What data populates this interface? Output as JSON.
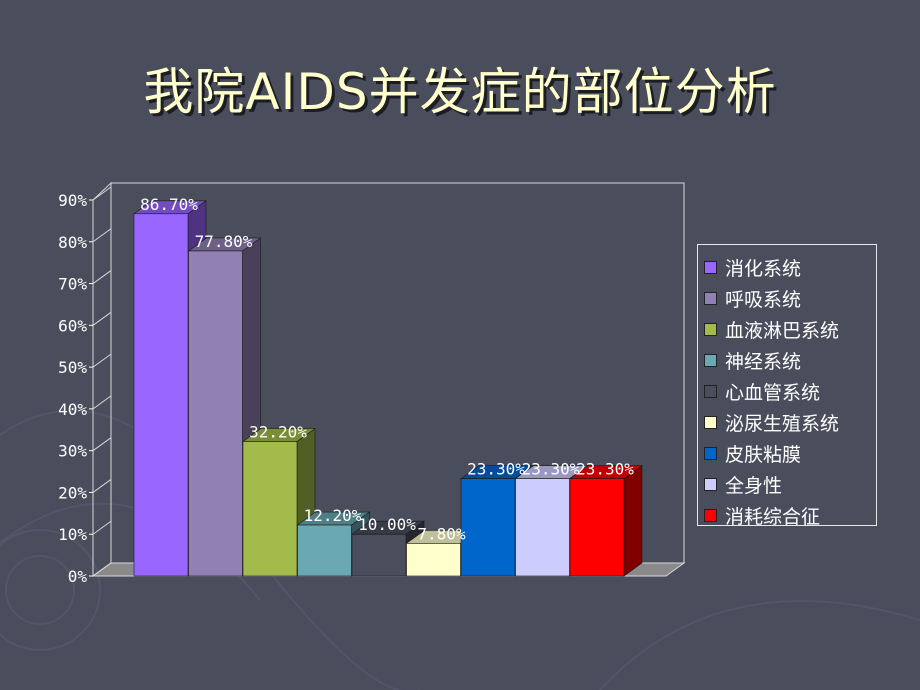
{
  "slide": {
    "title": "我院AIDS并发症的部位分析"
  },
  "chart_data": {
    "type": "bar",
    "style": "3d-column",
    "ylim": [
      0,
      90
    ],
    "ytick_step": 10,
    "yticks": [
      "0%",
      "10%",
      "20%",
      "30%",
      "40%",
      "50%",
      "60%",
      "70%",
      "80%",
      "90%"
    ],
    "legend_position": "right",
    "grid": false,
    "series": [
      {
        "name": "消化系统",
        "value": 86.7,
        "label": "86.70%",
        "color": "#9966ff"
      },
      {
        "name": "呼吸系统",
        "value": 77.8,
        "label": "77.80%",
        "color": "#9180b4"
      },
      {
        "name": "血液淋巴系统",
        "value": 32.2,
        "label": "32.20%",
        "color": "#a2bb4a"
      },
      {
        "name": "神经系统",
        "value": 12.2,
        "label": "12.20%",
        "color": "#6aa8b4"
      },
      {
        "name": "心血管系统",
        "value": 10.0,
        "label": "10.00%",
        "color": "#4a4d5c"
      },
      {
        "name": "泌尿生殖系统",
        "value": 7.8,
        "label": "7.80%",
        "color": "#ffffcc"
      },
      {
        "name": "皮肤粘膜",
        "value": 23.3,
        "label": "23.30%",
        "color": "#0066cc"
      },
      {
        "name": "全身性",
        "value": 23.3,
        "label": "23.30%",
        "color": "#ccccff"
      },
      {
        "name": "消耗综合征",
        "value": 23.3,
        "label": "23.30%",
        "color": "#ff0000"
      }
    ]
  }
}
